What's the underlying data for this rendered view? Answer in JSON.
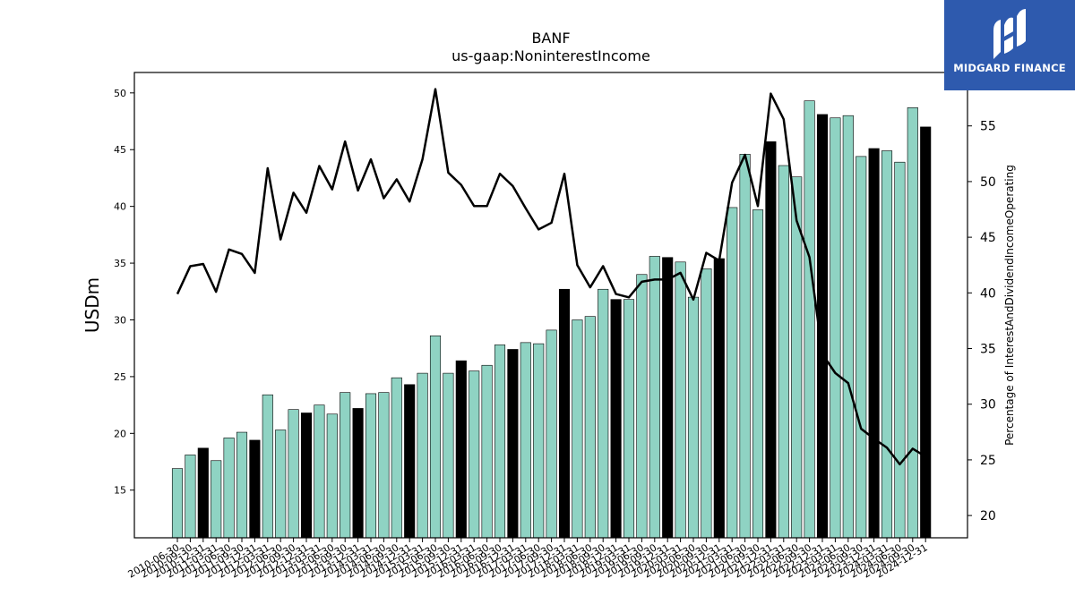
{
  "chart_data": {
    "type": "bar",
    "title": "BANF",
    "subtitle": "us-gaap:NoninterestIncome",
    "ylabel": "USDm",
    "y2label": "Percentage of InterestAndDividendIncomeOperating",
    "ylim": [
      10.8,
      51.8
    ],
    "y2lim": [
      18,
      59.8
    ],
    "yticks": [
      15,
      20,
      25,
      30,
      35,
      40,
      45,
      50
    ],
    "y2ticks": [
      20,
      25,
      30,
      35,
      40,
      45,
      50,
      55
    ],
    "categories": [
      "2010-06-30",
      "2010-09-30",
      "2010-12-31",
      "2011-03-31",
      "2011-06-30",
      "2011-09-30",
      "2011-12-31",
      "2012-03-31",
      "2012-06-30",
      "2012-09-30",
      "2012-12-31",
      "2013-03-31",
      "2013-06-30",
      "2013-09-30",
      "2013-12-31",
      "2014-03-31",
      "2014-06-30",
      "2014-09-30",
      "2014-12-31",
      "2015-03-31",
      "2015-06-30",
      "2015-09-30",
      "2015-12-31",
      "2016-03-31",
      "2016-06-30",
      "2016-09-30",
      "2016-12-31",
      "2017-03-31",
      "2017-06-30",
      "2017-09-30",
      "2017-12-31",
      "2018-03-31",
      "2018-06-30",
      "2018-09-30",
      "2018-12-31",
      "2019-03-31",
      "2019-06-30",
      "2019-09-30",
      "2019-12-31",
      "2020-03-31",
      "2020-06-30",
      "2020-09-30",
      "2020-12-31",
      "2021-03-31",
      "2021-06-30",
      "2021-09-30",
      "2021-12-31",
      "2022-03-31",
      "2022-06-30",
      "2022-09-30",
      "2022-12-31",
      "2023-03-31",
      "2023-06-30",
      "2023-09-30",
      "2023-12-31",
      "2024-03-31",
      "2024-06-30",
      "2024-09-30",
      "2024-12-31"
    ],
    "series": [
      {
        "type": "bar",
        "axis": "left",
        "values": [
          16.9,
          18.1,
          18.7,
          17.6,
          19.6,
          20.1,
          19.4,
          23.4,
          20.3,
          22.1,
          21.8,
          22.5,
          21.7,
          23.6,
          22.2,
          23.5,
          23.6,
          24.9,
          24.3,
          25.3,
          28.6,
          25.3,
          26.4,
          25.5,
          26.0,
          27.8,
          27.4,
          28.0,
          27.9,
          29.1,
          32.7,
          30.0,
          30.3,
          32.7,
          31.8,
          31.8,
          34.0,
          35.6,
          35.5,
          35.1,
          32.0,
          34.5,
          35.4,
          39.9,
          44.6,
          39.7,
          45.7,
          43.6,
          42.6,
          49.3,
          48.1,
          47.8,
          48.0,
          44.4,
          45.1,
          44.9,
          43.9,
          48.7,
          47.0
        ],
        "highlight": [
          false,
          false,
          true,
          false,
          false,
          false,
          true,
          false,
          false,
          false,
          true,
          false,
          false,
          false,
          true,
          false,
          false,
          false,
          true,
          false,
          false,
          false,
          true,
          false,
          false,
          false,
          true,
          false,
          false,
          false,
          true,
          false,
          false,
          false,
          true,
          false,
          false,
          false,
          true,
          false,
          false,
          false,
          true,
          false,
          false,
          false,
          true,
          false,
          false,
          false,
          true,
          false,
          false,
          false,
          true,
          false,
          false,
          false,
          true
        ],
        "color": "#8fd3c3",
        "highlight_color": "#000000"
      },
      {
        "type": "line",
        "axis": "right",
        "color": "#000000",
        "values": [
          39.9,
          42.4,
          42.6,
          40.1,
          43.9,
          43.5,
          41.8,
          51.2,
          44.8,
          49.0,
          47.2,
          51.4,
          49.3,
          53.6,
          49.2,
          52.0,
          48.5,
          50.2,
          48.2,
          52.0,
          58.3,
          50.8,
          49.7,
          47.8,
          47.8,
          50.7,
          49.6,
          47.6,
          45.7,
          46.3,
          50.7,
          42.5,
          40.5,
          42.4,
          39.9,
          39.6,
          41.0,
          41.2,
          41.2,
          41.8,
          39.4,
          43.6,
          42.9,
          49.9,
          52.4,
          47.8,
          57.9,
          55.6,
          46.5,
          43.2,
          34.5,
          32.8,
          31.9,
          27.8,
          26.9,
          26.1,
          24.6,
          26.0,
          25.3
        ]
      }
    ],
    "grid": false,
    "legend": "none"
  },
  "logo": {
    "text": "MIDGARD FINANCE",
    "bg_color": "#2e5aae",
    "fg_color": "#ffffff"
  }
}
